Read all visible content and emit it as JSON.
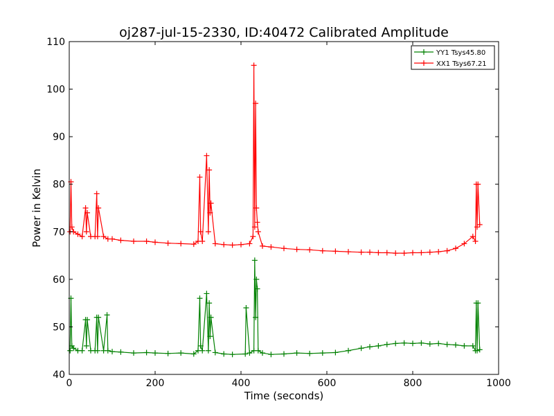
{
  "chart_data": {
    "type": "line",
    "title": "oj287-jul-15-2330, ID:40472 Calibrated Amplitude",
    "xlabel": "Time (seconds)",
    "ylabel": "Power in Kelvin",
    "xlim": [
      0,
      1000
    ],
    "ylim": [
      40,
      110
    ],
    "xticks": [
      "0",
      "200",
      "400",
      "600",
      "800",
      "1000"
    ],
    "yticks": [
      "40",
      "50",
      "60",
      "70",
      "80",
      "90",
      "100",
      "110"
    ],
    "grid": false,
    "legend_position": "top-right",
    "marker": "plus",
    "series": [
      {
        "name": "YY1 Tsys45.80",
        "color": "#008000",
        "x": [
          2,
          4,
          6,
          10,
          20,
          30,
          38,
          40,
          42,
          50,
          60,
          64,
          66,
          68,
          80,
          88,
          90,
          100,
          120,
          150,
          180,
          200,
          230,
          260,
          290,
          300,
          304,
          306,
          310,
          320,
          324,
          326,
          328,
          330,
          340,
          360,
          380,
          410,
          412,
          420,
          430,
          432,
          434,
          436,
          438,
          440,
          450,
          470,
          500,
          530,
          560,
          590,
          620,
          650,
          680,
          700,
          720,
          740,
          760,
          780,
          800,
          820,
          840,
          860,
          880,
          900,
          920,
          940,
          946,
          948,
          950,
          952,
          956
        ],
        "y": [
          45,
          56,
          46,
          45.5,
          45,
          45,
          51.5,
          46,
          51.5,
          45,
          45,
          52,
          45,
          52,
          45,
          52.5,
          45,
          44.8,
          44.7,
          44.5,
          44.6,
          44.5,
          44.4,
          44.5,
          44.3,
          45,
          56,
          46,
          45,
          57,
          45,
          55,
          48,
          52,
          44.6,
          44.3,
          44.2,
          44.3,
          54,
          44.5,
          45,
          64,
          52,
          60,
          58,
          45,
          44.5,
          44.2,
          44.3,
          44.5,
          44.4,
          44.5,
          44.6,
          45,
          45.5,
          45.8,
          46,
          46.3,
          46.5,
          46.6,
          46.5,
          46.6,
          46.4,
          46.5,
          46.3,
          46.2,
          46,
          46,
          45,
          55,
          45,
          55,
          45.2
        ]
      },
      {
        "name": "XX1 Tsys67.21",
        "color": "#ff0000",
        "x": [
          2,
          4,
          6,
          10,
          20,
          30,
          38,
          40,
          42,
          50,
          60,
          64,
          66,
          68,
          80,
          90,
          100,
          120,
          150,
          180,
          200,
          230,
          260,
          290,
          300,
          304,
          306,
          310,
          320,
          324,
          326,
          328,
          330,
          340,
          360,
          380,
          400,
          420,
          428,
          430,
          432,
          434,
          436,
          438,
          440,
          450,
          470,
          500,
          530,
          560,
          590,
          620,
          650,
          680,
          700,
          720,
          740,
          760,
          780,
          800,
          820,
          840,
          860,
          880,
          900,
          920,
          940,
          946,
          948,
          950,
          952,
          956
        ],
        "y": [
          70,
          80.5,
          71,
          70,
          69.5,
          69,
          75,
          70,
          74,
          69,
          69,
          78,
          69,
          75,
          69,
          68.5,
          68.5,
          68.2,
          68,
          68,
          67.8,
          67.6,
          67.5,
          67.4,
          68,
          81.5,
          70,
          68,
          86,
          70,
          83,
          74,
          76,
          67.5,
          67.3,
          67.2,
          67.3,
          67.5,
          69,
          105,
          71,
          97,
          75,
          72,
          70,
          67,
          66.8,
          66.5,
          66.3,
          66.2,
          66,
          65.9,
          65.8,
          65.7,
          65.7,
          65.6,
          65.6,
          65.5,
          65.5,
          65.6,
          65.6,
          65.7,
          65.8,
          66,
          66.5,
          67.5,
          69,
          68,
          80,
          71,
          80,
          71.5
        ]
      }
    ]
  }
}
